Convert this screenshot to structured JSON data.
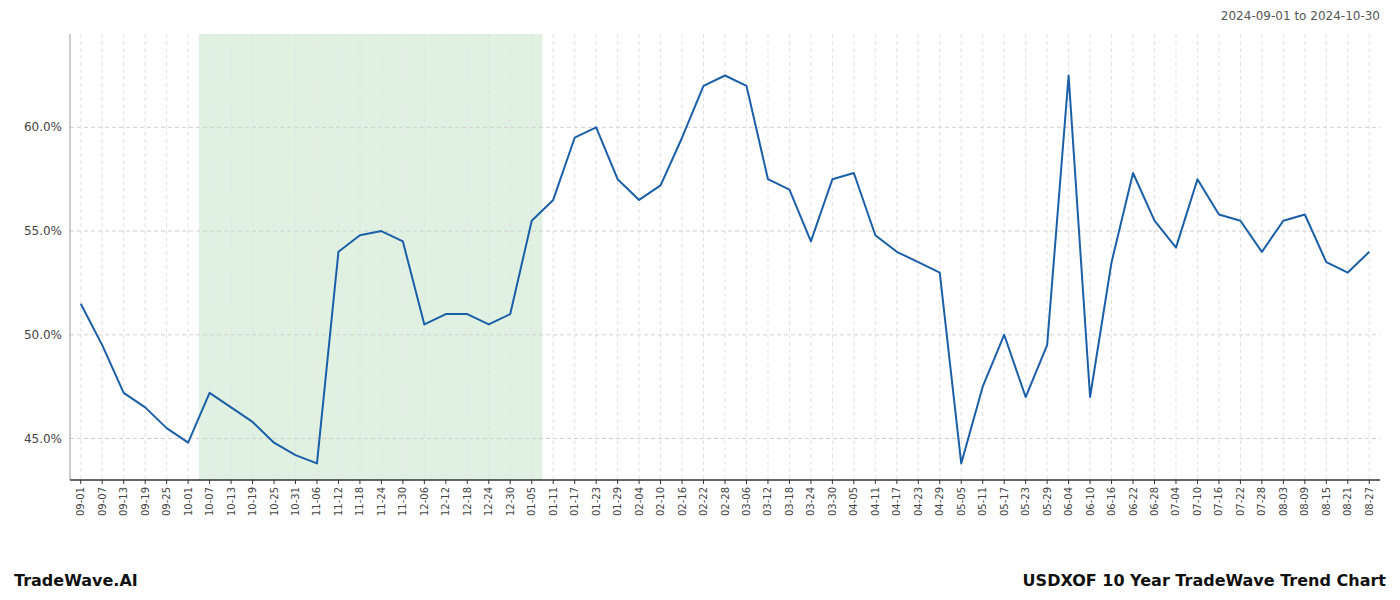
{
  "chart_data": {
    "type": "line",
    "title": "USDXOF 10 Year TradeWave Trend Chart",
    "subtitle": "2024-09-01 to 2024-10-30",
    "annotations": [
      "TradeWave.AI"
    ],
    "categories": [
      "09-01",
      "09-07",
      "09-13",
      "09-19",
      "09-25",
      "10-01",
      "10-07",
      "10-13",
      "10-19",
      "10-25",
      "10-31",
      "11-06",
      "11-12",
      "11-18",
      "11-24",
      "11-30",
      "12-06",
      "12-12",
      "12-18",
      "12-24",
      "12-30",
      "01-05",
      "01-11",
      "01-17",
      "01-23",
      "01-29",
      "02-04",
      "02-10",
      "02-16",
      "02-22",
      "02-28",
      "03-06",
      "03-12",
      "03-18",
      "03-24",
      "03-30",
      "04-05",
      "04-11",
      "04-17",
      "04-23",
      "04-29",
      "05-05",
      "05-11",
      "05-17",
      "05-23",
      "05-29",
      "06-04",
      "06-10",
      "06-16",
      "06-22",
      "06-28",
      "07-04",
      "07-10",
      "07-16",
      "07-22",
      "07-28",
      "08-03",
      "08-09",
      "08-15",
      "08-21",
      "08-27"
    ],
    "values": [
      51.5,
      49.5,
      47.2,
      46.5,
      45.5,
      44.8,
      47.2,
      46.5,
      45.8,
      44.8,
      44.2,
      43.8,
      54.0,
      54.8,
      55.0,
      54.5,
      50.5,
      51.0,
      51.0,
      50.5,
      51.0,
      55.5,
      56.5,
      59.5,
      60.0,
      57.5,
      56.5,
      57.2,
      59.5,
      62.0,
      62.5,
      62.0,
      57.5,
      57.0,
      54.5,
      57.5,
      57.8,
      54.8,
      54.0,
      53.5,
      53.0,
      43.8,
      47.5,
      50.0,
      47.0,
      49.5,
      62.5,
      47.0,
      53.5,
      57.8,
      55.5,
      54.2,
      57.5,
      55.8,
      55.5,
      54.0,
      55.5,
      55.8,
      53.5,
      53.0,
      54.0
    ],
    "color": "#1a5fa8",
    "highlight": {
      "start": "10-07",
      "end": "01-05",
      "color": "#c8e6c9"
    },
    "ylim": [
      43.0,
      64.5
    ],
    "yticks": [
      {
        "value": 45.0,
        "label": "45.0%"
      },
      {
        "value": 50.0,
        "label": "50.0%"
      },
      {
        "value": 55.0,
        "label": "55.0%"
      },
      {
        "value": 60.0,
        "label": "60.0%"
      }
    ],
    "grid": true
  }
}
